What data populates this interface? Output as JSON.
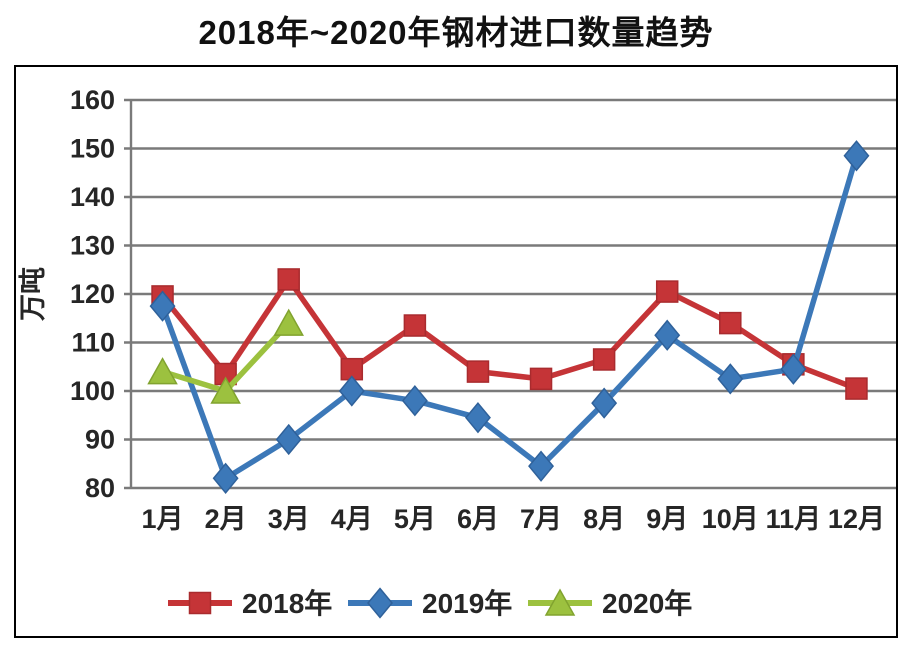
{
  "page": {
    "title": "2018年~2020年钢材进口数量趋势"
  },
  "chart_data": {
    "type": "line",
    "title": "2018年~2020年钢材进口数量趋势",
    "xlabel": "",
    "ylabel": "万吨",
    "ylim": [
      80,
      160
    ],
    "yticks": [
      80,
      90,
      100,
      110,
      120,
      130,
      140,
      150,
      160
    ],
    "grid": true,
    "legend_position": "bottom",
    "categories": [
      "1月",
      "2月",
      "3月",
      "4月",
      "5月",
      "6月",
      "7月",
      "8月",
      "9月",
      "10月",
      "11月",
      "12月"
    ],
    "series": [
      {
        "name": "2018年",
        "marker": "square",
        "color": "#C53437",
        "marker_stroke": "#A92B2E",
        "values": [
          119.5,
          103.5,
          123,
          104.5,
          113.5,
          104,
          102.5,
          106.5,
          120.5,
          114,
          105.5,
          100.5
        ]
      },
      {
        "name": "2019年",
        "marker": "diamond",
        "color": "#3C78B8",
        "marker_stroke": "#2F619A",
        "values": [
          117.5,
          82,
          90,
          100,
          98,
          94.5,
          84.5,
          97.5,
          111.5,
          102.5,
          104.5,
          148.5
        ]
      },
      {
        "name": "2020年",
        "marker": "triangle",
        "color": "#9CC13F",
        "marker_stroke": "#81A32F",
        "values": [
          104,
          100,
          114,
          null,
          null,
          null,
          null,
          null,
          null,
          null,
          null,
          null
        ]
      }
    ]
  },
  "colors": {
    "grid": "#7a7a7a",
    "axis_text": "#262626",
    "frame": "#000000",
    "background": "#ffffff"
  }
}
